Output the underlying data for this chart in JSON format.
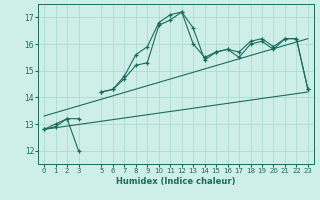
{
  "title": "",
  "xlabel": "Humidex (Indice chaleur)",
  "bg_color": "#ceeee8",
  "grid_color": "#a8d8d0",
  "line_color": "#1a6b5e",
  "xlim": [
    -0.5,
    23.5
  ],
  "ylim": [
    11.5,
    17.5
  ],
  "yticks": [
    12,
    13,
    14,
    15,
    16,
    17
  ],
  "xticks": [
    0,
    1,
    2,
    3,
    5,
    6,
    7,
    8,
    9,
    10,
    11,
    12,
    13,
    14,
    15,
    16,
    17,
    18,
    19,
    20,
    21,
    22,
    23
  ],
  "series1": [
    12.8,
    12.9,
    13.2,
    13.2,
    null,
    14.2,
    14.3,
    14.8,
    15.6,
    15.9,
    16.8,
    17.1,
    17.2,
    16.0,
    15.5,
    15.7,
    15.8,
    15.7,
    16.1,
    16.2,
    15.9,
    16.2,
    16.2,
    14.3
  ],
  "series2": [
    12.8,
    13.0,
    13.2,
    12.0,
    null,
    14.2,
    14.3,
    14.7,
    15.2,
    15.3,
    16.7,
    16.9,
    17.2,
    16.6,
    15.4,
    15.7,
    15.8,
    15.5,
    16.0,
    16.1,
    15.8,
    16.2,
    16.2,
    14.3
  ],
  "line_straight1": [
    [
      0,
      12.8
    ],
    [
      23,
      14.2
    ]
  ],
  "line_straight2": [
    [
      0,
      13.3
    ],
    [
      23,
      16.2
    ]
  ]
}
